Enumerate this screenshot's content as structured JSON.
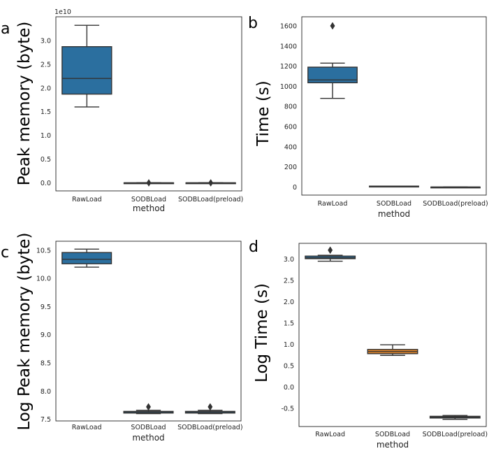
{
  "colors": {
    "blue": "#2b6f9f",
    "orange": "#e0852b",
    "line": "#333333"
  },
  "chart_data": [
    {
      "panel": "a",
      "type": "box",
      "xlabel": "method",
      "ylabel": "Peak memory (byte)",
      "y_offset_text": "1e10",
      "categories": [
        "RawLoad",
        "SODBLoad",
        "SODBLoad(preload)"
      ],
      "yticks": [
        0.0,
        0.5,
        1.0,
        1.5,
        2.0,
        2.5,
        3.0
      ],
      "ytick_labels": [
        "0.0",
        "0.5",
        "1.0",
        "1.5",
        "2.0",
        "2.5",
        "3.0"
      ],
      "ylim": [
        -0.17,
        3.5
      ],
      "boxes": [
        {
          "min": 1.6,
          "q1": 1.87,
          "median": 2.2,
          "q3": 2.87,
          "max": 3.32,
          "outliers": [],
          "color": "blue"
        },
        {
          "min": 0.0,
          "q1": 0.0,
          "median": 0.0,
          "q3": 0.0,
          "max": 0.0,
          "outliers": [
            0.0
          ],
          "color": "blue"
        },
        {
          "min": 0.0,
          "q1": 0.0,
          "median": 0.0,
          "q3": 0.0,
          "max": 0.0,
          "outliers": [
            0.0
          ],
          "color": "blue"
        }
      ]
    },
    {
      "panel": "b",
      "type": "box",
      "xlabel": "method",
      "ylabel": "Time (s)",
      "categories": [
        "RawLoad",
        "SODBLoad",
        "SODBLoad(preload)"
      ],
      "yticks": [
        0,
        200,
        400,
        600,
        800,
        1000,
        1200,
        1400,
        1600
      ],
      "ytick_labels": [
        "0",
        "200",
        "400",
        "600",
        "800",
        "1000",
        "1200",
        "1400",
        "1600"
      ],
      "ylim": [
        -80,
        1690
      ],
      "boxes": [
        {
          "min": 880,
          "q1": 1035,
          "median": 1063,
          "q3": 1190,
          "max": 1230,
          "outliers": [
            1600
          ],
          "color": "blue"
        },
        {
          "min": 7,
          "q1": 8,
          "median": 8,
          "q3": 9,
          "max": 9,
          "outliers": [],
          "color": "orange"
        },
        {
          "min": 0,
          "q1": 0,
          "median": 0,
          "q3": 0,
          "max": 0,
          "outliers": [],
          "color": "blue"
        }
      ]
    },
    {
      "panel": "c",
      "type": "box",
      "xlabel": "method",
      "ylabel": "Log Peak memory (byte)",
      "categories": [
        "RawLoad",
        "SODBLoad",
        "SODBLoad(preload)"
      ],
      "yticks": [
        7.5,
        8.0,
        8.5,
        9.0,
        9.5,
        10.0,
        10.5
      ],
      "ytick_labels": [
        "7.5",
        "8.0",
        "8.5",
        "9.0",
        "9.5",
        "10.0",
        "10.5"
      ],
      "ylim": [
        7.47,
        10.66
      ],
      "boxes": [
        {
          "min": 10.2,
          "q1": 10.26,
          "median": 10.34,
          "q3": 10.46,
          "max": 10.52,
          "outliers": [],
          "color": "blue"
        },
        {
          "min": 7.6,
          "q1": 7.61,
          "median": 7.62,
          "q3": 7.64,
          "max": 7.66,
          "outliers": [
            7.72
          ],
          "color": "blue"
        },
        {
          "min": 7.6,
          "q1": 7.61,
          "median": 7.62,
          "q3": 7.64,
          "max": 7.66,
          "outliers": [
            7.72
          ],
          "color": "blue"
        }
      ]
    },
    {
      "panel": "d",
      "type": "box",
      "xlabel": "method",
      "ylabel": "Log Time (s)",
      "categories": [
        "RawLoad",
        "SODBLoad",
        "SODBLoad(preload)"
      ],
      "yticks": [
        -0.5,
        0.0,
        0.5,
        1.0,
        1.5,
        2.0,
        2.5,
        3.0
      ],
      "ytick_labels": [
        "-0.5",
        "0.0",
        "0.5",
        "1.0",
        "1.5",
        "2.0",
        "2.5",
        "3.0"
      ],
      "ylim": [
        -0.93,
        3.37
      ],
      "boxes": [
        {
          "min": 2.95,
          "q1": 3.01,
          "median": 3.03,
          "q3": 3.07,
          "max": 3.09,
          "outliers": [
            3.21
          ],
          "color": "blue"
        },
        {
          "min": 0.74,
          "q1": 0.78,
          "median": 0.83,
          "q3": 0.88,
          "max": 0.99,
          "outliers": [],
          "color": "orange"
        },
        {
          "min": -0.76,
          "q1": -0.73,
          "median": -0.71,
          "q3": -0.69,
          "max": -0.67,
          "outliers": [],
          "color": "blue"
        }
      ]
    }
  ]
}
